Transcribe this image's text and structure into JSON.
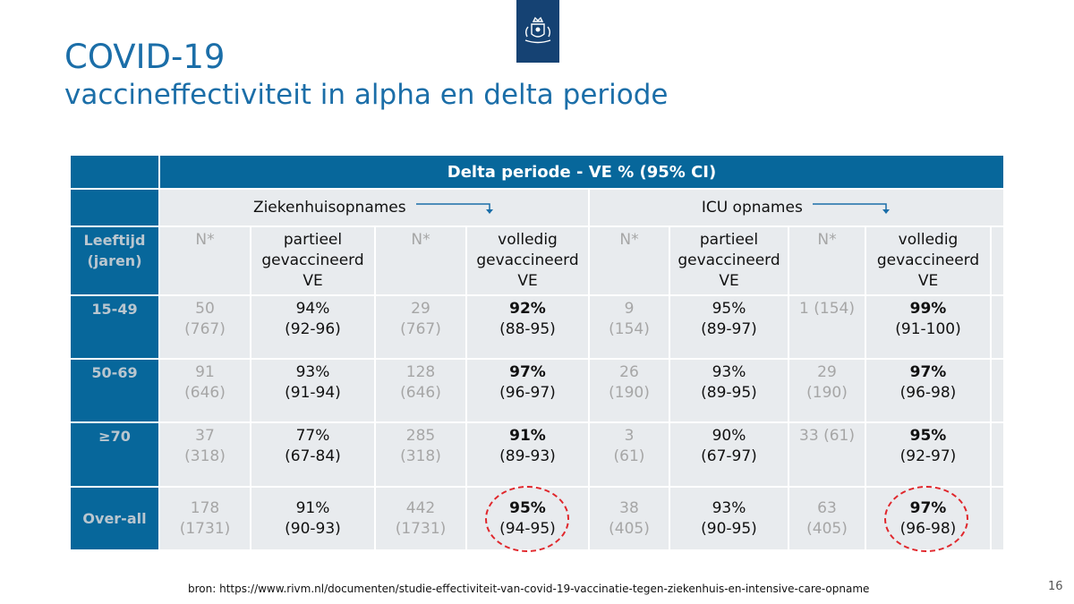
{
  "logo": {
    "icon": "coat-of-arms-icon",
    "color": "#154273"
  },
  "title": "COVID-19",
  "subtitle": "vaccineffectiviteit in alpha en delta periode",
  "table": {
    "header": "Delta periode - VE % (95% CI)",
    "groups": [
      "Ziekenhuisopnames",
      "ICU opnames"
    ],
    "columns": {
      "age": "Leeftijd (jaren)",
      "n": "N*",
      "partial_line1": "partieel",
      "partial_line2": "gevaccineerd",
      "full_line1": "volledig",
      "full_line2": "gevaccineerd",
      "ve": "VE"
    },
    "rows": [
      {
        "label": "15-49",
        "hosp": {
          "n1": "50",
          "n1b": "(767)",
          "p": "94%",
          "pci": "(92-96)",
          "n2": "29",
          "n2b": "(767)",
          "f": "92%",
          "fci": "(88-95)"
        },
        "icu": {
          "n1": "9",
          "n1b": "(154)",
          "p": "95%",
          "pci": "(89-97)",
          "n2": "1 (154)",
          "n2b": "",
          "f": "99%",
          "fci": "(91-100)"
        }
      },
      {
        "label": "50-69",
        "hosp": {
          "n1": "91",
          "n1b": "(646)",
          "p": "93%",
          "pci": "(91-94)",
          "n2": "128",
          "n2b": "(646)",
          "f": "97%",
          "fci": "(96-97)"
        },
        "icu": {
          "n1": "26",
          "n1b": "(190)",
          "p": "93%",
          "pci": "(89-95)",
          "n2": "29",
          "n2b": "(190)",
          "f": "97%",
          "fci": "(96-98)"
        }
      },
      {
        "label": "≥70",
        "hosp": {
          "n1": "37",
          "n1b": "(318)",
          "p": "77%",
          "pci": "(67-84)",
          "n2": "285",
          "n2b": "(318)",
          "f": "91%",
          "fci": "(89-93)"
        },
        "icu": {
          "n1": "3",
          "n1b": "(61)",
          "p": "90%",
          "pci": "(67-97)",
          "n2": "33 (61)",
          "n2b": "",
          "f": "95%",
          "fci": "(92-97)"
        }
      },
      {
        "label": "Over-all",
        "hosp": {
          "n1": "178",
          "n1b": "(1731)",
          "p": "91%",
          "pci": "(90-93)",
          "n2": "442",
          "n2b": "(1731)",
          "f": "95%",
          "fci": "(94-95)"
        },
        "icu": {
          "n1": "38",
          "n1b": "(405)",
          "p": "93%",
          "pci": "(90-95)",
          "n2": "63",
          "n2b": "(405)",
          "f": "97%",
          "fci": "(96-98)"
        }
      }
    ]
  },
  "colors": {
    "header_blue": "#07679b",
    "title_blue": "#1b6ea8",
    "cell_bg": "#e8ebee",
    "highlight_red": "#e0262b"
  },
  "source": "bron: https://www.rivm.nl/documenten/studie-effectiviteit-van-covid-19-vaccinatie-tegen-ziekenhuis-en-intensive-care-opname",
  "page_number": "16"
}
